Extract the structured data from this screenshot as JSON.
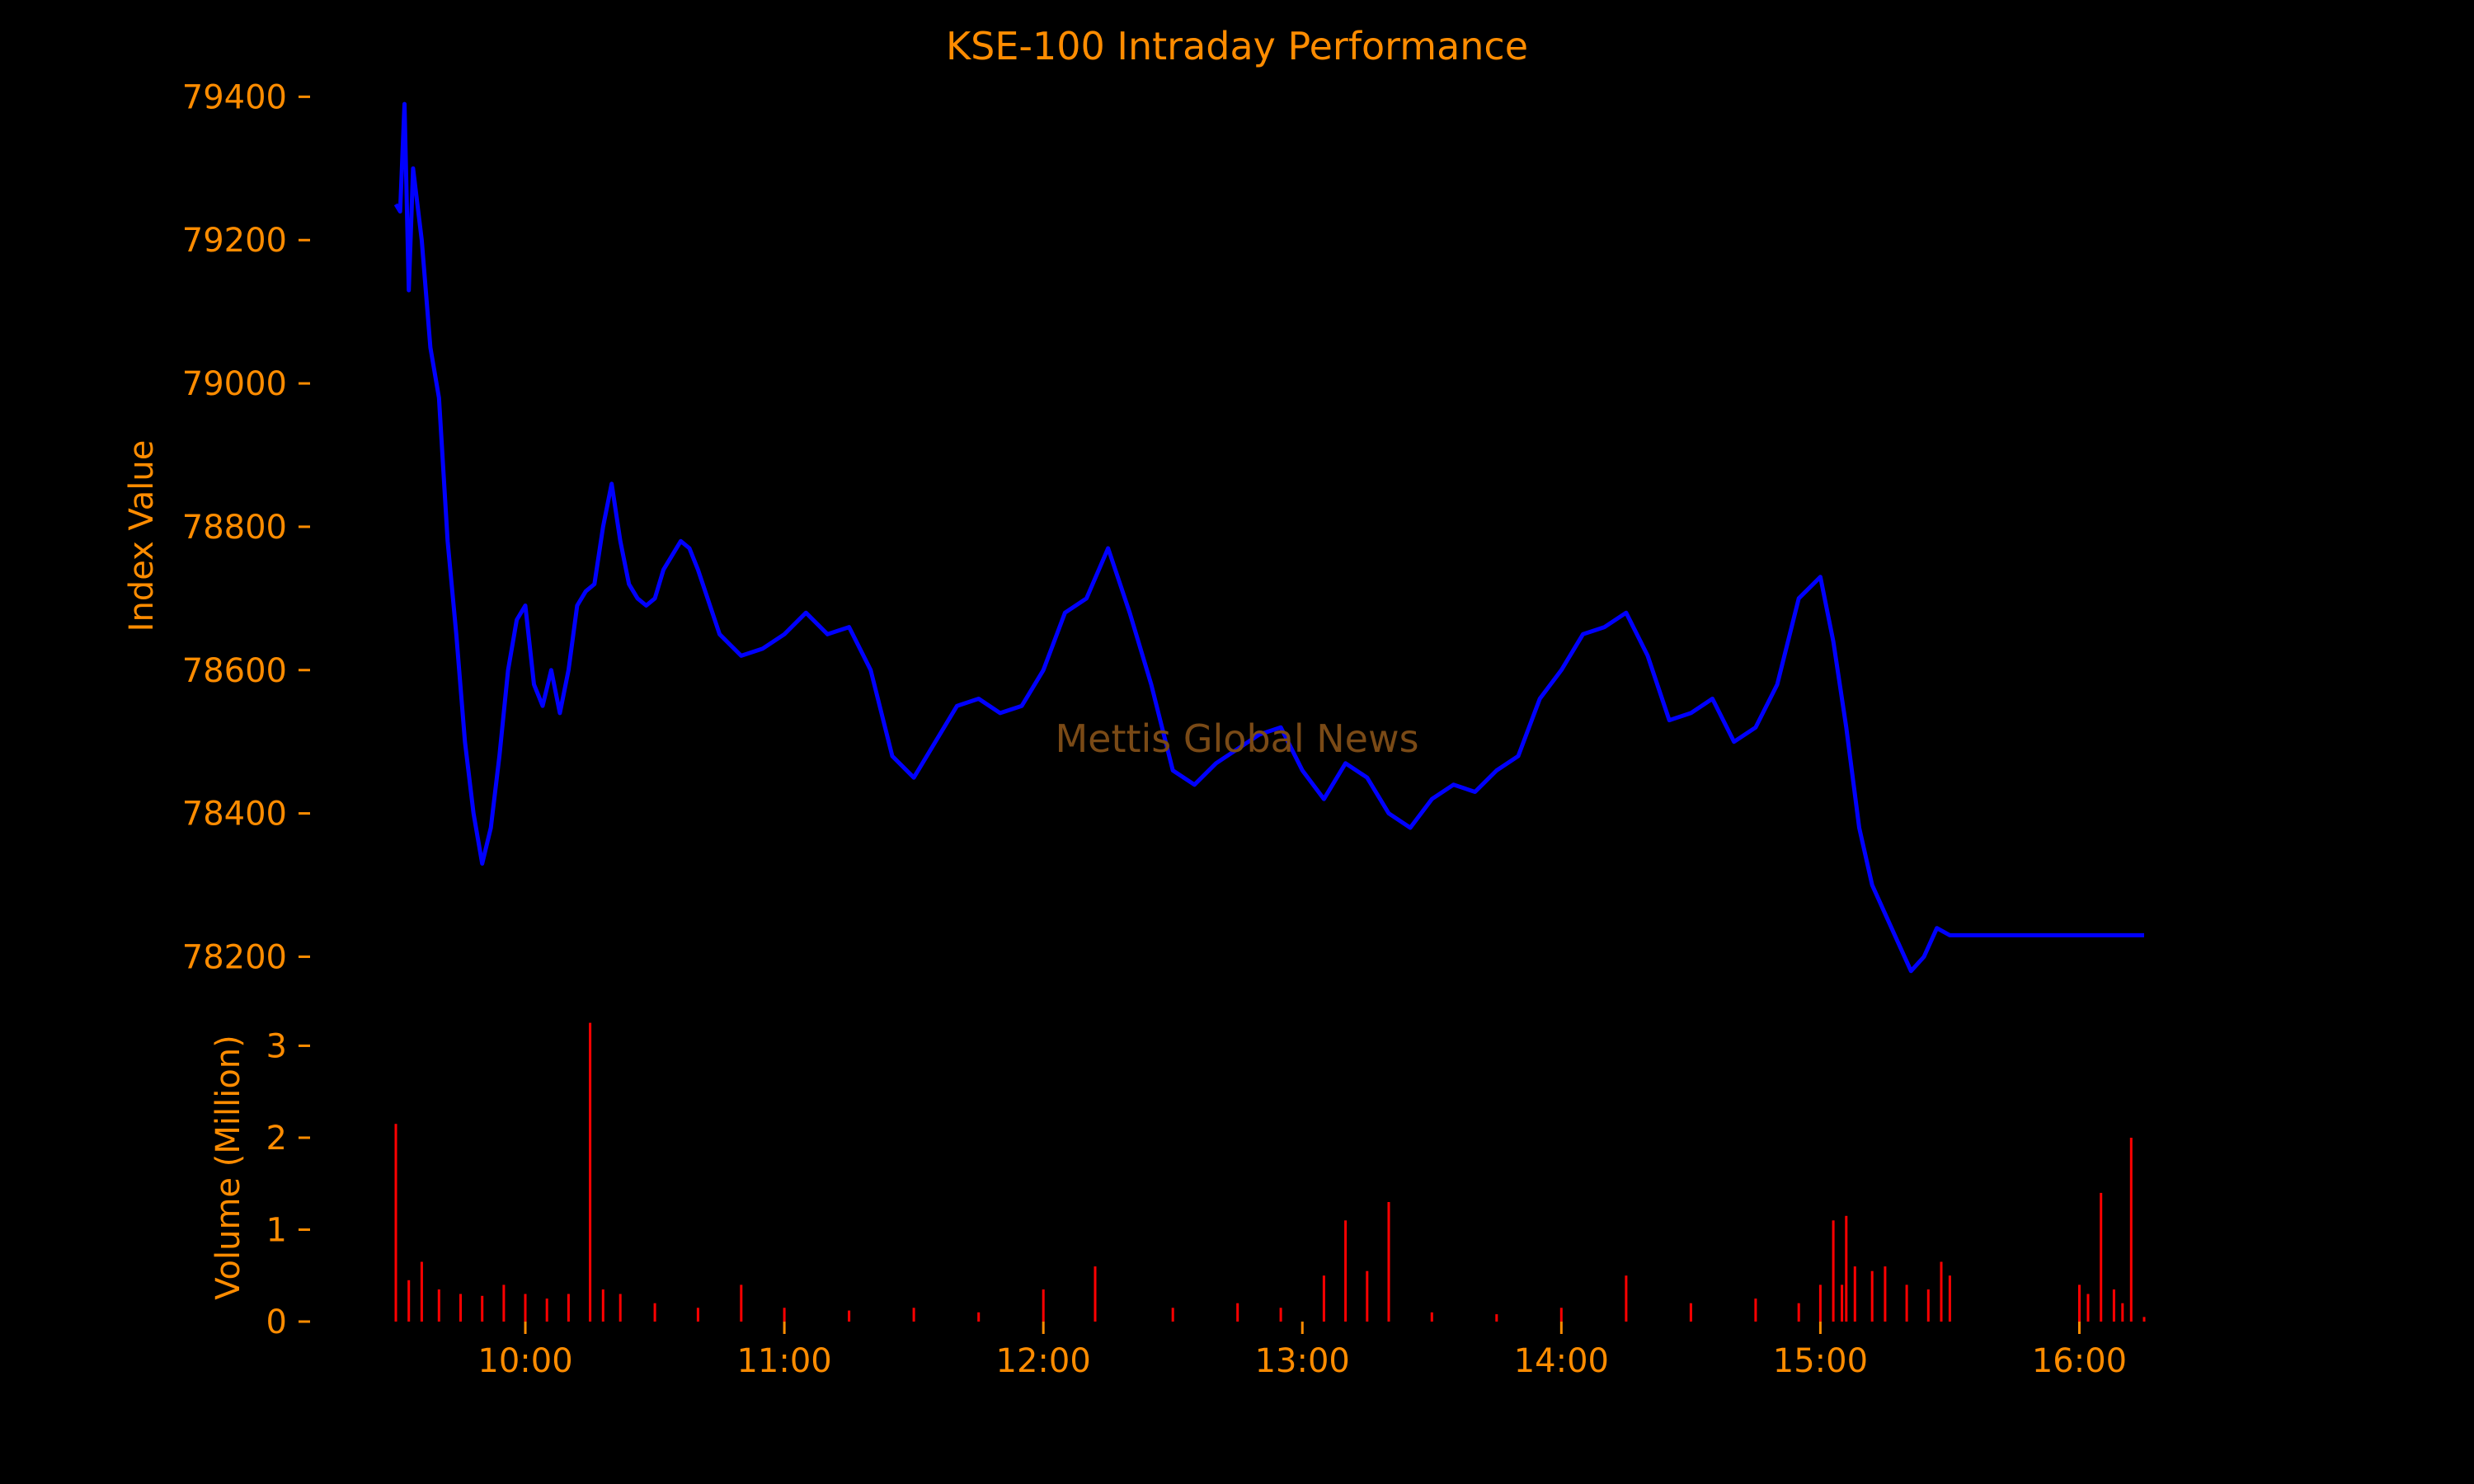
{
  "chart_data": [
    {
      "type": "line",
      "title": "KSE-100 Intraday Performance",
      "xlabel": "",
      "ylabel": "Index Value",
      "xlim": [
        "09:30",
        "16:15"
      ],
      "ylim": [
        78120,
        79420
      ],
      "yticks": [
        78200,
        78400,
        78600,
        78800,
        79000,
        79200,
        79400
      ],
      "xticks": [
        "10:00",
        "11:00",
        "12:00",
        "13:00",
        "14:00",
        "15:00",
        "16:00"
      ],
      "grid": false,
      "legend": "none",
      "line_color": "#0000ff",
      "series": [
        {
          "x": [
            "09:30",
            "09:31",
            "09:32",
            "09:33",
            "09:34",
            "09:36",
            "09:38",
            "09:40",
            "09:42",
            "09:44",
            "09:46",
            "09:48",
            "09:50",
            "09:52",
            "09:54",
            "09:56",
            "09:58",
            "10:00",
            "10:02",
            "10:04",
            "10:06",
            "10:08",
            "10:10",
            "10:12",
            "10:14",
            "10:16",
            "10:18",
            "10:20",
            "10:22",
            "10:24",
            "10:26",
            "10:28",
            "10:30",
            "10:32",
            "10:34",
            "10:36",
            "10:38",
            "10:40",
            "10:45",
            "10:50",
            "10:55",
            "11:00",
            "11:05",
            "11:10",
            "11:15",
            "11:20",
            "11:25",
            "11:30",
            "11:35",
            "11:40",
            "11:45",
            "11:50",
            "11:55",
            "12:00",
            "12:05",
            "12:10",
            "12:15",
            "12:20",
            "12:25",
            "12:30",
            "12:35",
            "12:40",
            "12:45",
            "12:50",
            "12:55",
            "13:00",
            "13:05",
            "13:10",
            "13:15",
            "13:20",
            "13:25",
            "13:30",
            "13:35",
            "13:40",
            "13:45",
            "13:50",
            "13:55",
            "14:00",
            "14:05",
            "14:10",
            "14:15",
            "14:20",
            "14:25",
            "14:30",
            "14:35",
            "14:40",
            "14:45",
            "14:50",
            "14:55",
            "15:00",
            "15:03",
            "15:06",
            "15:09",
            "15:12",
            "15:15",
            "15:18",
            "15:21",
            "15:24",
            "15:27",
            "15:30",
            "16:15"
          ],
          "y": [
            79250,
            79240,
            79390,
            79130,
            79300,
            79200,
            79050,
            78980,
            78780,
            78650,
            78500,
            78400,
            78330,
            78380,
            78480,
            78600,
            78670,
            78690,
            78580,
            78550,
            78600,
            78540,
            78600,
            78690,
            78710,
            78720,
            78800,
            78860,
            78780,
            78720,
            78700,
            78690,
            78700,
            78740,
            78760,
            78780,
            78770,
            78740,
            78650,
            78620,
            78630,
            78650,
            78680,
            78650,
            78660,
            78600,
            78480,
            78450,
            78500,
            78550,
            78560,
            78540,
            78550,
            78600,
            78680,
            78700,
            78770,
            78680,
            78580,
            78460,
            78440,
            78470,
            78490,
            78510,
            78520,
            78460,
            78420,
            78470,
            78450,
            78400,
            78380,
            78420,
            78440,
            78430,
            78460,
            78480,
            78560,
            78600,
            78650,
            78660,
            78680,
            78620,
            78530,
            78540,
            78560,
            78500,
            78520,
            78580,
            78700,
            78730,
            78640,
            78520,
            78380,
            78300,
            78260,
            78220,
            78180,
            78200,
            78240,
            78230,
            78230
          ]
        }
      ]
    },
    {
      "type": "bar",
      "title": "",
      "xlabel": "",
      "ylabel": "Volume (Million)",
      "xlim": [
        "09:30",
        "16:15"
      ],
      "ylim": [
        0,
        3.3
      ],
      "yticks": [
        0,
        1,
        2,
        3
      ],
      "grid": false,
      "legend": "none",
      "bar_color": "#ff0000",
      "x": [
        "09:30",
        "09:33",
        "09:36",
        "09:40",
        "09:45",
        "09:50",
        "09:55",
        "10:00",
        "10:05",
        "10:10",
        "10:15",
        "10:18",
        "10:22",
        "10:30",
        "10:40",
        "10:50",
        "11:00",
        "11:15",
        "11:30",
        "11:45",
        "12:00",
        "12:12",
        "12:30",
        "12:45",
        "12:55",
        "13:05",
        "13:10",
        "13:15",
        "13:20",
        "13:30",
        "13:45",
        "14:00",
        "14:15",
        "14:30",
        "14:45",
        "14:55",
        "15:00",
        "15:03",
        "15:05",
        "15:06",
        "15:08",
        "15:12",
        "15:15",
        "15:20",
        "15:25",
        "15:28",
        "15:30",
        "16:00",
        "16:02",
        "16:05",
        "16:08",
        "16:10",
        "16:12",
        "16:15"
      ],
      "values": [
        2.15,
        0.45,
        0.65,
        0.35,
        0.3,
        0.28,
        0.4,
        0.3,
        0.25,
        0.3,
        3.25,
        0.35,
        0.3,
        0.2,
        0.15,
        0.4,
        0.15,
        0.12,
        0.15,
        0.1,
        0.35,
        0.6,
        0.15,
        0.2,
        0.15,
        0.5,
        1.1,
        0.55,
        1.3,
        0.1,
        0.08,
        0.15,
        0.5,
        0.2,
        0.25,
        0.2,
        0.4,
        1.1,
        0.4,
        1.15,
        0.6,
        0.55,
        0.6,
        0.4,
        0.35,
        0.65,
        0.5,
        0.4,
        0.3,
        1.4,
        0.35,
        0.2,
        2.0,
        0.05
      ]
    }
  ],
  "watermark": "Mettis Global News",
  "colors": {
    "background": "#000000",
    "text": "#ff8c00",
    "watermark": "#7a4a16",
    "line": "#0000ff",
    "bars": "#ff0000"
  }
}
